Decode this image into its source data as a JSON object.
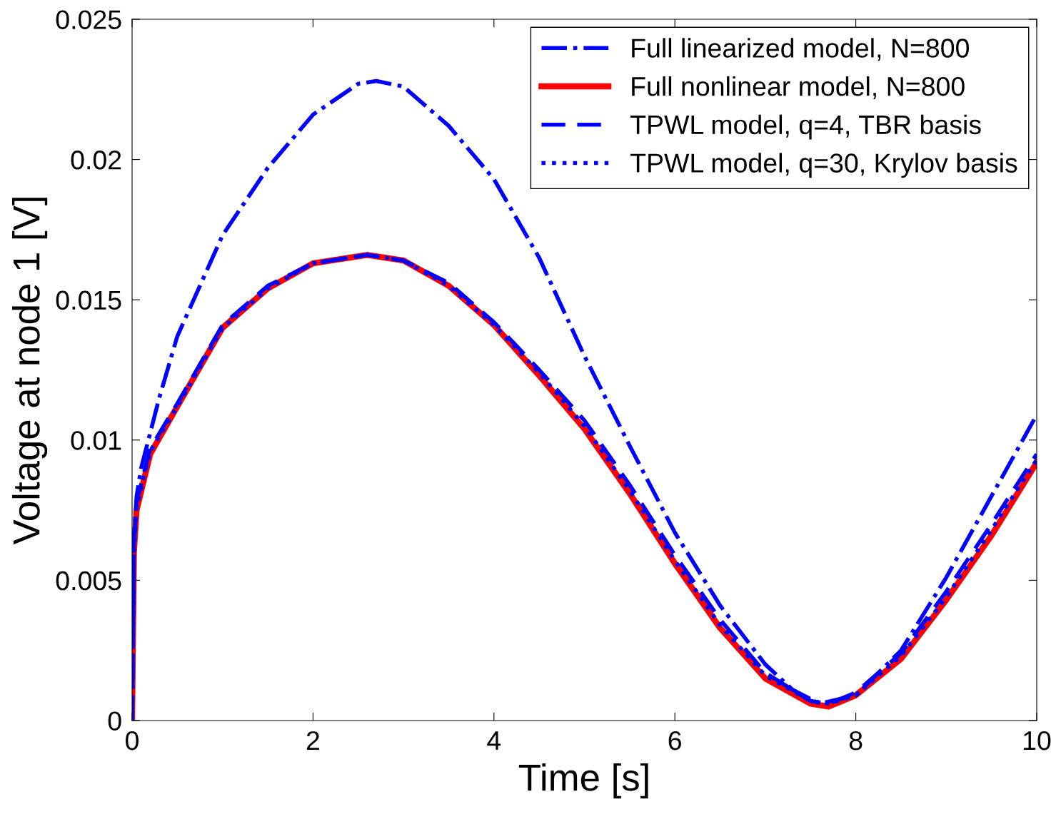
{
  "chart_data": {
    "type": "line",
    "xlabel": "Time [s]",
    "ylabel": "Voltage at node 1 [V]",
    "xlim": [
      0,
      10
    ],
    "ylim": [
      0,
      0.025
    ],
    "xticks": [
      0,
      2,
      4,
      6,
      8,
      10
    ],
    "yticks": [
      0,
      0.005,
      0.01,
      0.015,
      0.02,
      0.025
    ],
    "grid": false,
    "legend": "top right",
    "series": [
      {
        "name": "Full linearized model, N=800",
        "color": "#0000ff",
        "line_style": "dashdot",
        "x": [
          0,
          0.02,
          0.05,
          0.1,
          0.3,
          0.5,
          1,
          1.5,
          2,
          2.5,
          2.7,
          3,
          3.5,
          4,
          4.5,
          5,
          5.5,
          6,
          6.5,
          7,
          7.3,
          7.6,
          8,
          8.5,
          9,
          9.5,
          10
        ],
        "values": [
          0,
          0.0065,
          0.008,
          0.009,
          0.0115,
          0.0137,
          0.0173,
          0.0197,
          0.0216,
          0.0227,
          0.0228,
          0.0226,
          0.0212,
          0.0193,
          0.0165,
          0.013,
          0.0098,
          0.0067,
          0.0041,
          0.002,
          0.0011,
          0.0006,
          0.0009,
          0.0025,
          0.0051,
          0.008,
          0.0109
        ]
      },
      {
        "name": "Full nonlinear model, N=800",
        "color": "#ff0000",
        "line_style": "solid",
        "x": [
          0,
          0.02,
          0.05,
          0.2,
          0.5,
          1,
          1.5,
          2,
          2.6,
          3,
          3.5,
          4,
          4.5,
          5,
          5.5,
          6,
          6.5,
          7,
          7.5,
          7.7,
          8,
          8.5,
          9,
          9.5,
          10
        ],
        "values": [
          0,
          0.006,
          0.0075,
          0.0095,
          0.0112,
          0.014,
          0.0154,
          0.0163,
          0.0166,
          0.0164,
          0.0155,
          0.0141,
          0.0123,
          0.0104,
          0.0081,
          0.0056,
          0.0033,
          0.0015,
          0.0006,
          0.0005,
          0.0009,
          0.0022,
          0.0043,
          0.0066,
          0.0092
        ]
      },
      {
        "name": "TPWL model, q=4, TBR basis",
        "color": "#0000ff",
        "line_style": "dashed",
        "x": [
          0,
          0.02,
          0.05,
          0.2,
          0.5,
          1,
          1.5,
          2,
          2.6,
          3,
          3.5,
          4,
          4.5,
          5,
          5.5,
          6,
          6.5,
          7,
          7.5,
          7.7,
          8,
          8.5,
          9,
          9.5,
          10
        ],
        "values": [
          0,
          0.0062,
          0.0078,
          0.0097,
          0.0113,
          0.0141,
          0.0155,
          0.0163,
          0.0166,
          0.0164,
          0.0156,
          0.0142,
          0.0125,
          0.0107,
          0.0084,
          0.0059,
          0.0036,
          0.0017,
          0.0007,
          0.0006,
          0.001,
          0.0024,
          0.0046,
          0.007,
          0.0095
        ]
      },
      {
        "name": "TPWL model, q=30, Krylov basis",
        "color": "#0000ff",
        "line_style": "dotted",
        "x": [
          0,
          0.02,
          0.05,
          0.2,
          0.5,
          1,
          1.5,
          2,
          2.6,
          3,
          3.5,
          4,
          4.5,
          5,
          5.5,
          6,
          6.5,
          7,
          7.5,
          7.7,
          8,
          8.5,
          9,
          9.5,
          10
        ],
        "values": [
          0,
          0.006,
          0.0076,
          0.0096,
          0.0112,
          0.014,
          0.0154,
          0.0163,
          0.0166,
          0.0164,
          0.0155,
          0.0141,
          0.0124,
          0.0105,
          0.0082,
          0.0057,
          0.0034,
          0.0016,
          0.0007,
          0.0006,
          0.0009,
          0.0023,
          0.0044,
          0.0068,
          0.0093
        ]
      }
    ]
  }
}
